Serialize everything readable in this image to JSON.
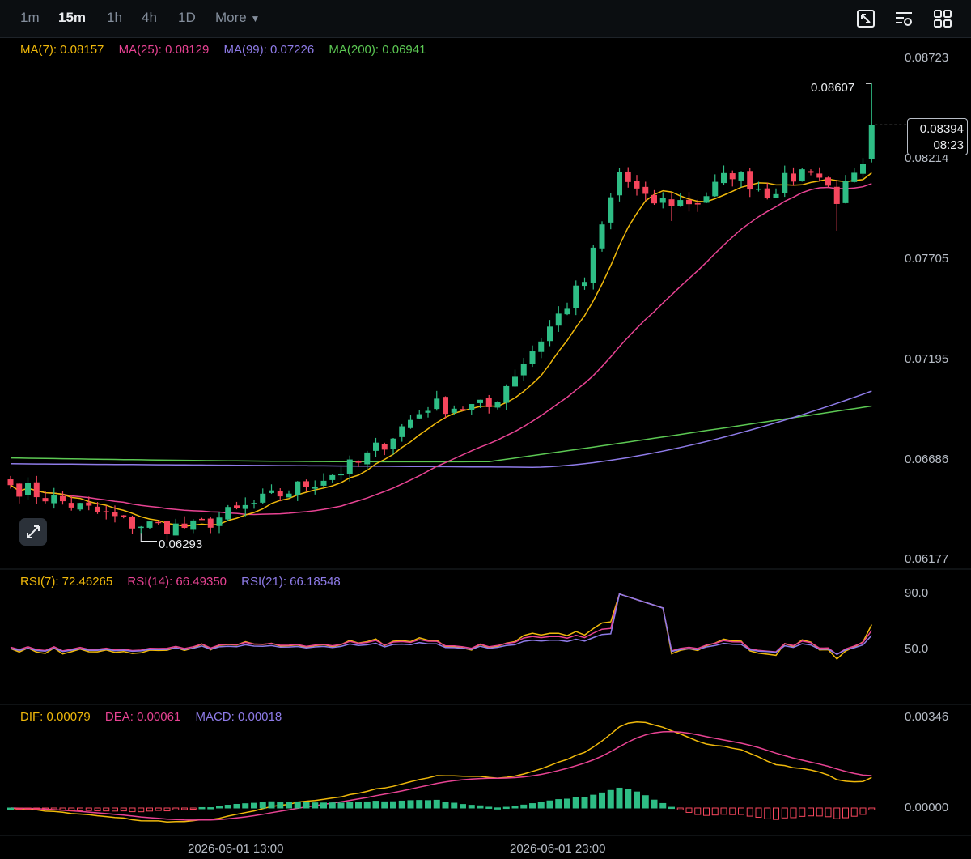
{
  "toolbar": {
    "timeframes": [
      "1m",
      "15m",
      "1h",
      "4h",
      "1D"
    ],
    "active": "15m",
    "more_label": "More",
    "icons": [
      "chart-type-icon",
      "indicator-settings-icon",
      "layout-grid-icon"
    ]
  },
  "colors": {
    "up": "#2ebd85",
    "down": "#f6465d",
    "ma7": "#f0b90b",
    "ma25": "#e84393",
    "ma99": "#8e7be8",
    "ma200": "#5cc853",
    "rsi7": "#f0b90b",
    "rsi14": "#e84393",
    "rsi21": "#8e7be8",
    "dif": "#f0b90b",
    "dea": "#e84393",
    "macd": "#8e7be8"
  },
  "main_legend": {
    "ma7": "MA(7): 0.08157",
    "ma25": "MA(25): 0.08129",
    "ma99": "MA(99): 0.07226",
    "ma200": "MA(200): 0.06941"
  },
  "price_axis": [
    "0.08723",
    "0.08214",
    "0.07705",
    "0.07195",
    "0.06686",
    "0.06177"
  ],
  "current_price": {
    "value": "0.08394",
    "countdown": "08:23"
  },
  "high_marker": "0.08607",
  "low_marker": "0.06293",
  "rsi_legend": {
    "rsi7": "RSI(7): 72.46265",
    "rsi14": "RSI(14): 66.49350",
    "rsi21": "RSI(21): 66.18548"
  },
  "rsi_axis": [
    "90.0",
    "50.0"
  ],
  "macd_legend": {
    "dif": "DIF: 0.00079",
    "dea": "DEA: 0.00061",
    "macd": "MACD: 0.00018"
  },
  "macd_axis": [
    "0.00346",
    "0.00000"
  ],
  "time_labels": [
    "2026-06-01 13:00",
    "2026-06-01 23:00"
  ],
  "chart_data": {
    "type": "candlestick",
    "interval": "15m",
    "candle_count": 100,
    "ohlc_anchors": [
      {
        "i": 0,
        "close": 0.0654
      },
      {
        "i": 14,
        "close": 0.0634
      },
      {
        "i": 21,
        "close": 0.0632
      },
      {
        "i": 40,
        "close": 0.0665
      },
      {
        "i": 48,
        "close": 0.0695
      },
      {
        "i": 55,
        "close": 0.0694
      },
      {
        "i": 66,
        "close": 0.0759
      },
      {
        "i": 70,
        "close": 0.0815
      },
      {
        "i": 73,
        "close": 0.08
      },
      {
        "i": 79,
        "close": 0.08
      },
      {
        "i": 83,
        "close": 0.0815
      },
      {
        "i": 87,
        "close": 0.0805
      },
      {
        "i": 92,
        "close": 0.0818
      },
      {
        "i": 95,
        "close": 0.0802
      },
      {
        "i": 98,
        "close": 0.0816
      },
      {
        "i": 99,
        "close": 0.08394
      }
    ],
    "high": 0.08607,
    "low": 0.06293,
    "ylim": [
      0.0612,
      0.088
    ],
    "rsi_ylim": [
      30,
      100
    ],
    "macd_ylim": [
      -0.0006,
      0.0036
    ]
  }
}
